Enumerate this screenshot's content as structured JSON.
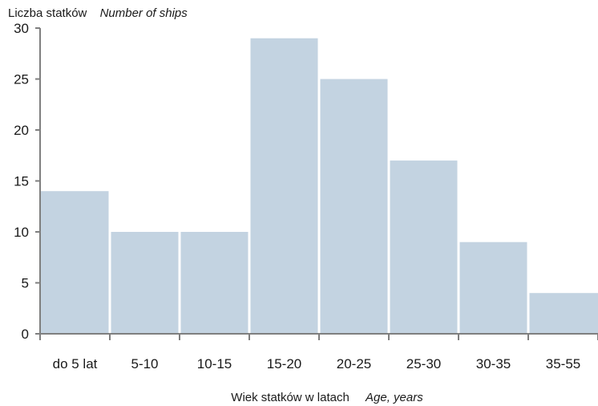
{
  "chart_data": {
    "type": "bar",
    "title": "",
    "ylabel": "Liczba statków",
    "ylabel_en": "Number of ships",
    "xlabel": "Wiek statków w latach",
    "xlabel_en": "Age, years",
    "categories": [
      "do 5 lat",
      "5-10",
      "10-15",
      "15-20",
      "20-25",
      "25-30",
      "30-35",
      "35-55"
    ],
    "values": [
      14,
      10,
      10,
      29,
      25,
      17,
      9,
      4
    ],
    "ylim": [
      0,
      30
    ],
    "yticks": [
      0,
      5,
      10,
      15,
      20,
      25,
      30
    ],
    "grid": false,
    "legend": "none",
    "bar_color": "#c3d3e1",
    "axis_color": "#7f7f7f"
  }
}
